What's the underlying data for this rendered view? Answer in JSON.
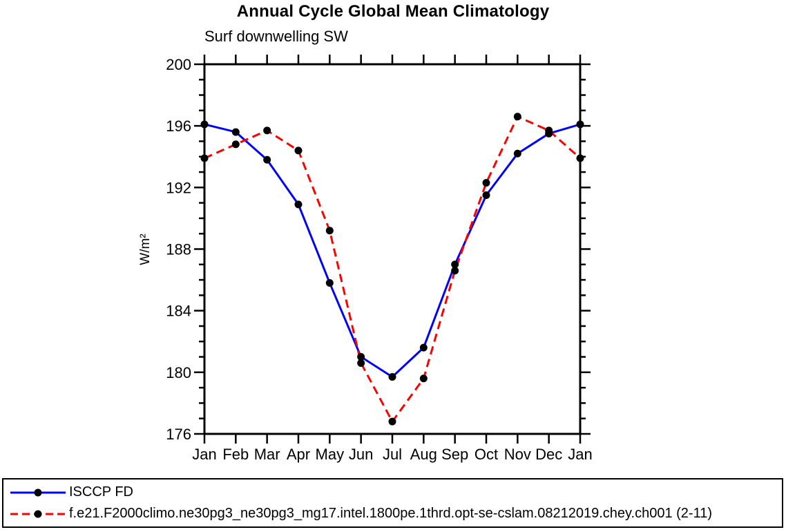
{
  "chart_data": {
    "type": "line",
    "title": "Annual Cycle Global Mean Climatology",
    "subtitle": "Surf downwelling SW",
    "ylabel": "W/m²",
    "xlabel": "",
    "categories": [
      "Jan",
      "Feb",
      "Mar",
      "Apr",
      "May",
      "Jun",
      "Jul",
      "Aug",
      "Sep",
      "Oct",
      "Nov",
      "Dec",
      "Jan"
    ],
    "ylim": [
      176,
      200
    ],
    "yticks": {
      "major_step": 4,
      "minor_step": 1,
      "labels": [
        176,
        180,
        184,
        188,
        192,
        196,
        200
      ]
    },
    "grid": false,
    "legend_position": "bottom",
    "axis_color": "#000000",
    "marker_shape": "filled-circle",
    "series": [
      {
        "name": "ISCCP FD",
        "color": "#0000ff",
        "line_style": "solid",
        "marker_color": "#000000",
        "values": [
          196.1,
          195.6,
          193.8,
          190.9,
          185.8,
          181.0,
          179.7,
          181.6,
          187.0,
          191.5,
          194.2,
          195.5,
          196.1
        ]
      },
      {
        "name": "f.e21.F2000climo.ne30pg3_ne30pg3_mg17.intel.1800pe.1thrd.opt-se-cslam.08212019.chey.ch001 (2-11)",
        "color": "#ff0000",
        "line_style": "dashed",
        "marker_color": "#000000",
        "values": [
          193.9,
          194.8,
          195.7,
          194.4,
          189.2,
          180.6,
          176.8,
          179.6,
          186.6,
          192.3,
          196.6,
          195.7,
          193.9
        ]
      }
    ]
  }
}
